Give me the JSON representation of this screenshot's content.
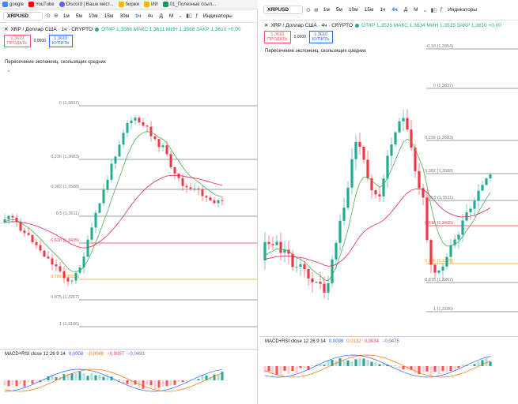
{
  "bookmarks": [
    {
      "label": "google",
      "color": "#4285f4"
    },
    {
      "label": "YouTube",
      "color": "#ff0000"
    },
    {
      "label": "Discord | Ваше мест...",
      "color": "#5865f2"
    },
    {
      "label": "биржи",
      "color": "#f4b400"
    },
    {
      "label": "ИИ",
      "color": "#f4b400"
    },
    {
      "label": "01_Полезные ссыл...",
      "color": "#0f9d58"
    }
  ],
  "left": {
    "symbol": "XRPUSD",
    "timeframes": [
      "1м",
      "5м",
      "10м",
      "15м",
      "30м",
      "1ч",
      "4ч",
      "Д",
      "М"
    ],
    "active_tf": "1ч",
    "indicators_label": "Индикаторы",
    "title": "XRP / Доллар США · 1ч · CRYPTO",
    "ohlc": "ОТКР 1,3568 МАКС 1,3611 МИН 1,3568 ЗАКР 1,3610 +0,00",
    "sell_price": "1,3610",
    "sell_label": "ПРОДАТЬ",
    "spread": "0,0000",
    "buy_price": "1,3610",
    "buy_label": "КУПИТЬ",
    "indicator": "Пересечение экспоненц. скользящих средних",
    "macd": {
      "name": "MACD+RSI close 12 26 9 14",
      "v1": "0,0008",
      "v2": "−0,0048",
      "v3": "−0,0057",
      "v4": "−0,0493"
    },
    "fibs": [
      {
        "label": "0 (1,3837)",
        "color": "#787b86"
      },
      {
        "label": "0,236 (1,3683)",
        "color": "#787b86"
      },
      {
        "label": "0,382 (1,3588)",
        "color": "#787b86"
      },
      {
        "label": "0,5 (1,3511)",
        "color": "#787b86"
      },
      {
        "label": "0,618 (1,3435)",
        "color": "#f23645"
      },
      {
        "label": "0,786 (1,3325)",
        "color": "#ff9800"
      },
      {
        "label": "0,875 (1,3267)",
        "color": "#787b86"
      },
      {
        "label": "1 (1,3186)",
        "color": "#787b86"
      }
    ]
  },
  "right": {
    "symbol": "XRPUSD",
    "timeframes": [
      "1м",
      "5м",
      "10м",
      "15м",
      "1ч",
      "4ч",
      "Д",
      "М"
    ],
    "active_tf": "4ч",
    "indicators_label": "Индикаторы",
    "title": "XRP / Доллар США · 4ч · CRYPTO",
    "ohlc": "ОТКР 1,3526 МАКС 1,3634 МИН 1,3515 ЗАКР 1,3610 +0,00",
    "sell_price": "1,3610",
    "sell_label": "ПРОДАТЬ",
    "spread": "0,0000",
    "buy_price": "1,3610",
    "buy_label": "КУПИТЬ",
    "indicator": "Пересечение экспоненц. скользящих средних",
    "macd": {
      "name": "MACD+RSI close 12 26 9 14",
      "v1": "0,0099",
      "v2": "0,0132",
      "v3": "0,0034",
      "v4": "−0,0475"
    },
    "fibs": [
      {
        "label": "−0,18 (1,3954)",
        "color": "#787b86"
      },
      {
        "label": "0 (1,3837)",
        "color": "#787b86"
      },
      {
        "label": "0,236 (1,3683)",
        "color": "#787b86"
      },
      {
        "label": "0,382 (1,3588)",
        "color": "#787b86"
      },
      {
        "label": "0,5 (1,3511)",
        "color": "#787b86"
      },
      {
        "label": "0,618 (1,3435)",
        "color": "#f23645"
      },
      {
        "label": "0,786 (1,3325)",
        "color": "#ff9800"
      },
      {
        "label": "0,875 (1,3267)",
        "color": "#787b86"
      },
      {
        "label": "1 (1,3186)",
        "color": "#787b86"
      }
    ]
  },
  "colors": {
    "up": "#22ab94",
    "down": "#f23645",
    "ema_fast": "#4caf50",
    "ema_slow": "#e91e63",
    "accent": "#2962ff"
  }
}
